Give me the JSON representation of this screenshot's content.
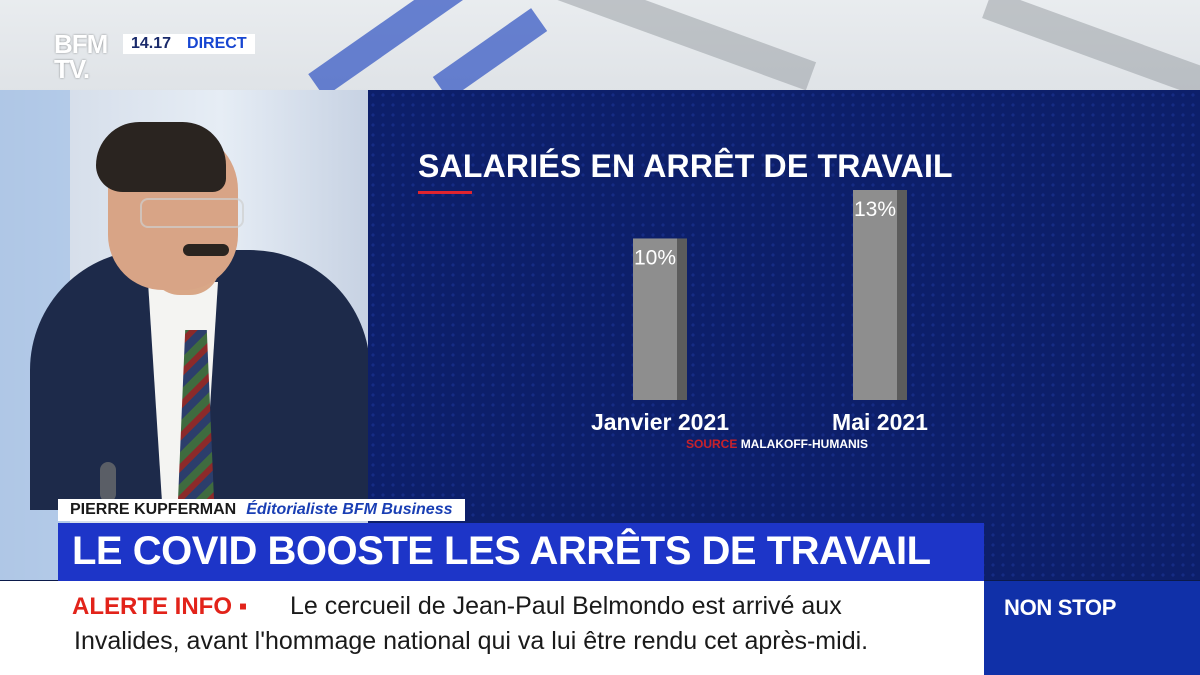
{
  "channel": {
    "logo_line1": "BFM",
    "logo_line2": "TV.",
    "time": "14.17",
    "live_label": "DIRECT"
  },
  "chart_data": {
    "type": "bar",
    "title": "SALARIÉS EN ARRÊT DE TRAVAIL",
    "categories": [
      "Janvier 2021",
      "Mai 2021"
    ],
    "values": [
      10,
      13
    ],
    "data_labels": [
      "10%",
      "13%"
    ],
    "ylabel": "",
    "xlabel": "",
    "ylim": [
      0,
      13
    ],
    "grid": false,
    "bar_color": "#8e8e8e",
    "bar_shadow_color": "#5c5c5c",
    "source_label": "SOURCE",
    "source_value": "MALAKOFF-HUMANIS"
  },
  "lower_third": {
    "guest_name": "PIERRE KUPFERMAN",
    "guest_role": "Éditorialiste BFM Business",
    "headline": "LE COVID BOOSTE LES ARRÊTS DE TRAVAIL"
  },
  "ticker": {
    "alert_label": "ALERTE INFO ▪",
    "line1": "Le cercueil de Jean-Paul Belmondo est arrivé aux",
    "line2": "Invalides, avant l'hommage national qui va lui être rendu cet après-midi."
  },
  "nonstop_label": "NON STOP",
  "colors": {
    "brand_blue": "#1d35c8",
    "alert_red": "#e2231a",
    "chart_bg": "#0d1f6a"
  }
}
